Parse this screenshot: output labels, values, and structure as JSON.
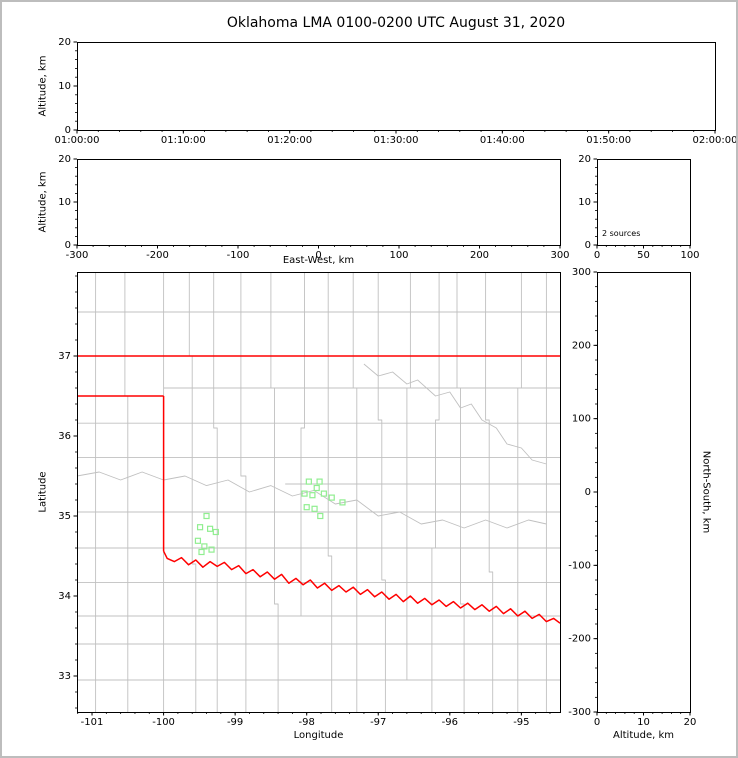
{
  "title": "Oklahoma LMA 0100-0200 UTC August 31, 2020",
  "colors": {
    "axis": "#000000",
    "county": "#c0c0c0",
    "state": "#ff0000",
    "source": "#90ee90",
    "background": "#ffffff",
    "frame": "#bdbdbd"
  },
  "chart_data": [
    {
      "id": "time_height",
      "type": "scatter",
      "title": "",
      "xlabel": "",
      "ylabel": "Altitude, km",
      "xlim": [
        0,
        60
      ],
      "ylim": [
        0,
        20
      ],
      "xticks": [
        0,
        10,
        20,
        30,
        40,
        50,
        60
      ],
      "xtick_labels": [
        "01:00:00",
        "01:10:00",
        "01:20:00",
        "01:30:00",
        "01:40:00",
        "01:50:00",
        "02:00:00"
      ],
      "x_minor": 2,
      "yticks": [
        0,
        10,
        20
      ],
      "ytick_labels": [
        "0",
        "10",
        "20"
      ],
      "y_minor": 2,
      "points": []
    },
    {
      "id": "ew_height",
      "type": "scatter",
      "xlabel": "East-West, km",
      "ylabel": "Altitude, km",
      "xlim": [
        -300,
        300
      ],
      "ylim": [
        0,
        20
      ],
      "xticks": [
        -300,
        -200,
        -100,
        0,
        100,
        200,
        300
      ],
      "xtick_labels": [
        "-300",
        "-200",
        "-100",
        "0",
        "100",
        "200",
        "300"
      ],
      "x_minor": 20,
      "yticks": [
        0,
        10,
        20
      ],
      "ytick_labels": [
        "0",
        "10",
        "20"
      ],
      "y_minor": 2,
      "points": []
    },
    {
      "id": "alt_histogram",
      "type": "scatter",
      "annotation": "2 sources",
      "xlim": [
        0,
        100
      ],
      "ylim": [
        0,
        20
      ],
      "xticks": [
        0,
        50,
        100
      ],
      "xtick_labels": [
        "0",
        "50",
        "100"
      ],
      "x_minor": 10,
      "yticks": [
        0,
        10,
        20
      ],
      "ytick_labels": [
        "0",
        "10",
        "20"
      ],
      "y_minor": 2,
      "points": []
    },
    {
      "id": "plan_view",
      "type": "scatter",
      "xlabel": "Longitude",
      "ylabel": "Latitude",
      "xlim": [
        -101.21,
        -94.46
      ],
      "ylim": [
        32.55,
        38.05
      ],
      "xticks": [
        -101,
        -100,
        -99,
        -98,
        -97,
        -96,
        -95
      ],
      "xtick_labels": [
        "-101",
        "-100",
        "-99",
        "-98",
        "-97",
        "-96",
        "-95"
      ],
      "x_minor": 0.2,
      "yticks": [
        33,
        34,
        35,
        36,
        37
      ],
      "ytick_labels": [
        "33",
        "34",
        "35",
        "36",
        "37"
      ],
      "y_minor": 0.2,
      "sources": [
        [
          -99.4,
          35.0
        ],
        [
          -99.49,
          34.86
        ],
        [
          -99.35,
          34.84
        ],
        [
          -99.27,
          34.8
        ],
        [
          -99.52,
          34.69
        ],
        [
          -99.43,
          34.62
        ],
        [
          -99.33,
          34.58
        ],
        [
          -99.47,
          34.55
        ],
        [
          -97.97,
          35.43
        ],
        [
          -97.82,
          35.43
        ],
        [
          -98.03,
          35.28
        ],
        [
          -97.92,
          35.26
        ],
        [
          -97.76,
          35.28
        ],
        [
          -97.65,
          35.23
        ],
        [
          -97.86,
          35.35
        ],
        [
          -98.0,
          35.11
        ],
        [
          -97.89,
          35.09
        ],
        [
          -97.81,
          35.0
        ],
        [
          -97.5,
          35.17
        ]
      ],
      "state_lines": [
        [
          [
            -101.21,
            37.0
          ],
          [
            -94.46,
            37.0
          ]
        ],
        [
          [
            -101.21,
            36.5
          ],
          [
            -100.0,
            36.5
          ]
        ],
        [
          [
            -100.0,
            36.5
          ],
          [
            -100.0,
            34.56
          ]
        ],
        [
          [
            -100.0,
            34.56
          ],
          [
            -99.95,
            34.47
          ],
          [
            -99.85,
            34.43
          ],
          [
            -99.75,
            34.48
          ],
          [
            -99.65,
            34.39
          ],
          [
            -99.55,
            34.45
          ],
          [
            -99.45,
            34.36
          ],
          [
            -99.35,
            34.43
          ],
          [
            -99.25,
            34.37
          ],
          [
            -99.15,
            34.42
          ],
          [
            -99.05,
            34.33
          ],
          [
            -98.95,
            34.38
          ],
          [
            -98.85,
            34.28
          ],
          [
            -98.75,
            34.33
          ],
          [
            -98.65,
            34.24
          ],
          [
            -98.55,
            34.3
          ],
          [
            -98.45,
            34.21
          ],
          [
            -98.35,
            34.27
          ],
          [
            -98.25,
            34.16
          ],
          [
            -98.15,
            34.22
          ],
          [
            -98.05,
            34.14
          ],
          [
            -97.95,
            34.2
          ],
          [
            -97.85,
            34.1
          ],
          [
            -97.75,
            34.16
          ],
          [
            -97.65,
            34.07
          ],
          [
            -97.55,
            34.13
          ],
          [
            -97.45,
            34.05
          ],
          [
            -97.35,
            34.11
          ],
          [
            -97.25,
            34.02
          ],
          [
            -97.15,
            34.08
          ],
          [
            -97.05,
            33.99
          ],
          [
            -96.95,
            34.05
          ],
          [
            -96.85,
            33.96
          ],
          [
            -96.75,
            34.02
          ],
          [
            -96.65,
            33.93
          ],
          [
            -96.55,
            34.0
          ],
          [
            -96.45,
            33.91
          ],
          [
            -96.35,
            33.97
          ],
          [
            -96.25,
            33.89
          ],
          [
            -96.15,
            33.95
          ],
          [
            -96.05,
            33.87
          ],
          [
            -95.95,
            33.93
          ],
          [
            -95.85,
            33.85
          ],
          [
            -95.75,
            33.91
          ],
          [
            -95.65,
            33.83
          ],
          [
            -95.55,
            33.89
          ],
          [
            -95.45,
            33.81
          ],
          [
            -95.35,
            33.87
          ],
          [
            -95.25,
            33.78
          ],
          [
            -95.15,
            33.84
          ],
          [
            -95.05,
            33.75
          ],
          [
            -94.95,
            33.81
          ],
          [
            -94.85,
            33.72
          ],
          [
            -94.75,
            33.77
          ],
          [
            -94.65,
            33.68
          ],
          [
            -94.55,
            33.72
          ],
          [
            -94.46,
            33.66
          ]
        ]
      ],
      "county_lines": [
        [
          [
            -100.95,
            32.55
          ],
          [
            -100.95,
            38.05
          ]
        ],
        [
          [
            -100.5,
            32.55
          ],
          [
            -100.5,
            36.5
          ],
          [
            -100.54,
            36.5
          ],
          [
            -100.54,
            38.05
          ]
        ],
        [
          [
            -100.0,
            32.55
          ],
          [
            -100.0,
            38.05
          ]
        ],
        [
          [
            -99.55,
            32.55
          ],
          [
            -99.55,
            34.4
          ],
          [
            -99.6,
            34.4
          ],
          [
            -99.6,
            37.0
          ],
          [
            -99.64,
            37.0
          ],
          [
            -99.64,
            38.05
          ]
        ],
        [
          [
            -99.25,
            32.55
          ],
          [
            -99.25,
            36.1
          ],
          [
            -99.3,
            36.1
          ],
          [
            -99.3,
            38.05
          ]
        ],
        [
          [
            -98.85,
            32.55
          ],
          [
            -98.85,
            35.5
          ],
          [
            -98.92,
            35.5
          ],
          [
            -98.92,
            38.05
          ]
        ],
        [
          [
            -98.4,
            32.55
          ],
          [
            -98.4,
            33.9
          ],
          [
            -98.45,
            33.9
          ],
          [
            -98.45,
            36.6
          ],
          [
            -98.5,
            36.6
          ],
          [
            -98.5,
            38.05
          ]
        ],
        [
          [
            -98.08,
            33.75
          ],
          [
            -98.08,
            36.1
          ],
          [
            -98.03,
            36.1
          ],
          [
            -98.03,
            38.05
          ]
        ],
        [
          [
            -97.65,
            32.55
          ],
          [
            -97.65,
            34.5
          ],
          [
            -97.7,
            34.5
          ],
          [
            -97.7,
            38.05
          ]
        ],
        [
          [
            -97.3,
            32.55
          ],
          [
            -97.3,
            36.6
          ],
          [
            -97.35,
            36.6
          ],
          [
            -97.35,
            38.05
          ]
        ],
        [
          [
            -96.9,
            32.55
          ],
          [
            -96.9,
            34.2
          ],
          [
            -96.95,
            34.2
          ],
          [
            -96.95,
            36.2
          ],
          [
            -97.0,
            36.2
          ],
          [
            -97.0,
            38.05
          ]
        ],
        [
          [
            -96.6,
            32.95
          ],
          [
            -96.6,
            36.6
          ],
          [
            -96.55,
            36.6
          ],
          [
            -96.55,
            38.05
          ]
        ],
        [
          [
            -96.25,
            32.55
          ],
          [
            -96.25,
            34.6
          ],
          [
            -96.2,
            34.6
          ],
          [
            -96.2,
            36.2
          ],
          [
            -96.15,
            36.2
          ],
          [
            -96.15,
            38.05
          ]
        ],
        [
          [
            -95.8,
            32.55
          ],
          [
            -95.8,
            33.9
          ],
          [
            -95.85,
            33.9
          ],
          [
            -95.85,
            36.6
          ],
          [
            -95.9,
            36.6
          ],
          [
            -95.9,
            38.05
          ]
        ],
        [
          [
            -95.4,
            32.55
          ],
          [
            -95.4,
            34.3
          ],
          [
            -95.45,
            34.3
          ],
          [
            -95.45,
            36.2
          ],
          [
            -95.5,
            36.2
          ],
          [
            -95.5,
            38.05
          ]
        ],
        [
          [
            -95.05,
            32.55
          ],
          [
            -95.05,
            36.6
          ],
          [
            -95.0,
            36.6
          ],
          [
            -95.0,
            38.05
          ]
        ],
        [
          [
            -94.65,
            32.55
          ],
          [
            -94.65,
            38.05
          ]
        ],
        [
          [
            -101.21,
            37.55
          ],
          [
            -94.46,
            37.55
          ]
        ],
        [
          [
            -100.0,
            36.6
          ],
          [
            -94.46,
            36.6
          ]
        ],
        [
          [
            -101.21,
            36.16
          ],
          [
            -94.46,
            36.16
          ]
        ],
        [
          [
            -101.21,
            35.73
          ],
          [
            -94.46,
            35.73
          ]
        ],
        [
          [
            -98.3,
            35.4
          ],
          [
            -94.46,
            35.4
          ]
        ],
        [
          [
            -101.21,
            35.05
          ],
          [
            -94.46,
            35.05
          ]
        ],
        [
          [
            -101.21,
            34.6
          ],
          [
            -94.46,
            34.6
          ]
        ],
        [
          [
            -101.21,
            34.17
          ],
          [
            -94.46,
            34.17
          ]
        ],
        [
          [
            -101.21,
            33.75
          ],
          [
            -94.46,
            33.75
          ]
        ],
        [
          [
            -101.21,
            33.4
          ],
          [
            -94.46,
            33.4
          ]
        ],
        [
          [
            -101.21,
            32.95
          ],
          [
            -94.46,
            32.95
          ]
        ]
      ],
      "rivers": [
        [
          [
            -97.2,
            36.9
          ],
          [
            -97.0,
            36.75
          ],
          [
            -96.8,
            36.8
          ],
          [
            -96.6,
            36.65
          ],
          [
            -96.45,
            36.7
          ],
          [
            -96.2,
            36.5
          ],
          [
            -96.0,
            36.55
          ],
          [
            -95.85,
            36.35
          ],
          [
            -95.7,
            36.4
          ],
          [
            -95.55,
            36.2
          ],
          [
            -95.35,
            36.1
          ],
          [
            -95.2,
            35.9
          ],
          [
            -95.0,
            35.85
          ],
          [
            -94.85,
            35.7
          ],
          [
            -94.65,
            35.65
          ]
        ],
        [
          [
            -101.21,
            35.5
          ],
          [
            -100.9,
            35.55
          ],
          [
            -100.6,
            35.45
          ],
          [
            -100.3,
            35.55
          ],
          [
            -100.0,
            35.45
          ],
          [
            -99.7,
            35.5
          ],
          [
            -99.4,
            35.38
          ],
          [
            -99.1,
            35.45
          ],
          [
            -98.8,
            35.3
          ],
          [
            -98.5,
            35.38
          ],
          [
            -98.2,
            35.25
          ],
          [
            -97.9,
            35.32
          ],
          [
            -97.6,
            35.15
          ],
          [
            -97.3,
            35.2
          ],
          [
            -97.0,
            35.0
          ],
          [
            -96.7,
            35.05
          ],
          [
            -96.4,
            34.9
          ],
          [
            -96.1,
            34.95
          ],
          [
            -95.8,
            34.85
          ],
          [
            -95.5,
            34.95
          ],
          [
            -95.2,
            34.85
          ],
          [
            -94.9,
            34.95
          ],
          [
            -94.65,
            34.9
          ]
        ]
      ]
    },
    {
      "id": "ns_height",
      "type": "scatter",
      "xlabel": "Altitude, km",
      "ylabel_right": "North-South, km",
      "xlim": [
        0,
        20
      ],
      "ylim": [
        -300,
        300
      ],
      "xticks": [
        0,
        10,
        20
      ],
      "xtick_labels": [
        "0",
        "10",
        "20"
      ],
      "x_minor": 2,
      "yticks": [
        -300,
        -200,
        -100,
        0,
        100,
        200,
        300
      ],
      "ytick_labels": [
        "-300",
        "-200",
        "-100",
        "0",
        "100",
        "200",
        "300"
      ],
      "y_minor": 20,
      "points": []
    }
  ]
}
